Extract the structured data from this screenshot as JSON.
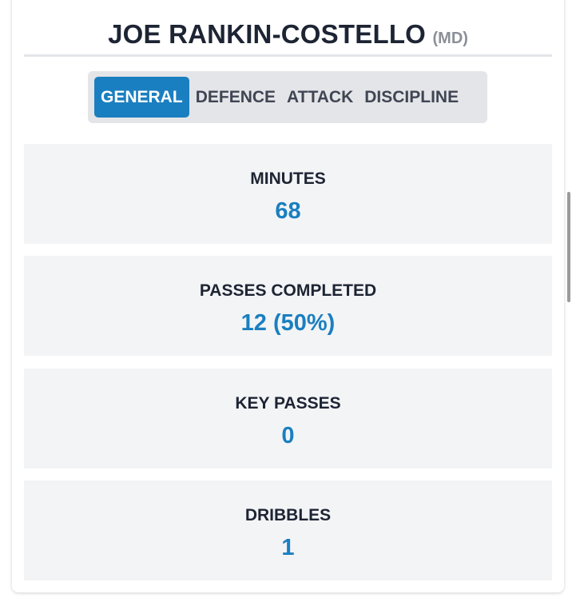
{
  "player": {
    "name": "JOE RANKIN-COSTELLO",
    "position": "(MD)"
  },
  "tabs": [
    {
      "label": "GENERAL",
      "active": true
    },
    {
      "label": "DEFENCE",
      "active": false
    },
    {
      "label": "ATTACK",
      "active": false
    },
    {
      "label": "DISCIPLINE",
      "active": false
    }
  ],
  "stats": [
    {
      "label": "MINUTES",
      "value": "68"
    },
    {
      "label": "PASSES COMPLETED",
      "value": "12 (50%)"
    },
    {
      "label": "KEY PASSES",
      "value": "0"
    },
    {
      "label": "DRIBBLES",
      "value": "1"
    }
  ],
  "colors": {
    "accent": "#1a7fc0",
    "text": "#1d2433",
    "panel": "#f3f4f6"
  }
}
